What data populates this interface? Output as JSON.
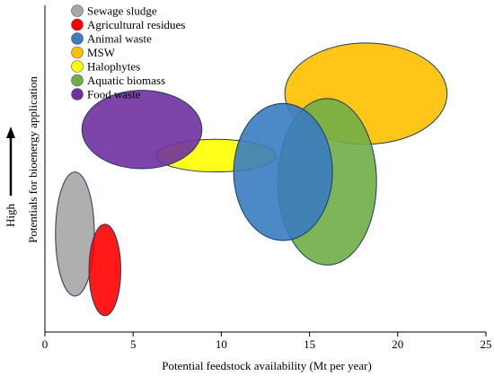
{
  "chart_data": {
    "type": "bubble",
    "xlabel": "Potential feedstock availability  (Mt per year)",
    "ylabel": "Potentials for bioenergy application",
    "y_indicator": "High",
    "xlim": [
      0,
      25
    ],
    "xticks": [
      0,
      5,
      10,
      15,
      20,
      25
    ],
    "legend_position": "top-left",
    "grid": false,
    "series": [
      {
        "name": "Sewage sludge",
        "color": "#A6A6A6",
        "x_center": 1.7,
        "x_span": [
          0.6,
          2.8
        ],
        "y_level": 0.3,
        "y_extent": 0.38
      },
      {
        "name": "Agricultural residues",
        "color": "#FF0000",
        "x_center": 3.4,
        "x_span": [
          2.5,
          4.3
        ],
        "y_level": 0.19,
        "y_extent": 0.28
      },
      {
        "name": "Animal waste",
        "color": "#3A7CC0",
        "x_center": 13.5,
        "x_span": [
          10.7,
          16.3
        ],
        "y_level": 0.49,
        "y_extent": 0.42
      },
      {
        "name": "MSW",
        "color": "#FFC000",
        "x_center": 18.2,
        "x_span": [
          13.6,
          22.8
        ],
        "y_level": 0.73,
        "y_extent": 0.31
      },
      {
        "name": "Halophytes",
        "color": "#FFFF00",
        "x_center": 9.7,
        "x_span": [
          6.3,
          13.1
        ],
        "y_level": 0.54,
        "y_extent": 0.1
      },
      {
        "name": "Aquatic biomass",
        "color": "#70AD47",
        "x_center": 16.0,
        "x_span": [
          13.2,
          18.8
        ],
        "y_level": 0.46,
        "y_extent": 0.51
      },
      {
        "name": "Food waste",
        "color": "#7030A0",
        "x_center": 5.5,
        "x_span": [
          2.1,
          8.9
        ],
        "y_level": 0.62,
        "y_extent": 0.24
      }
    ],
    "draw_order": [
      "Halophytes",
      "Food waste",
      "Sewage sludge",
      "Agricultural residues",
      "MSW",
      "Aquatic biomass",
      "Animal waste"
    ]
  }
}
